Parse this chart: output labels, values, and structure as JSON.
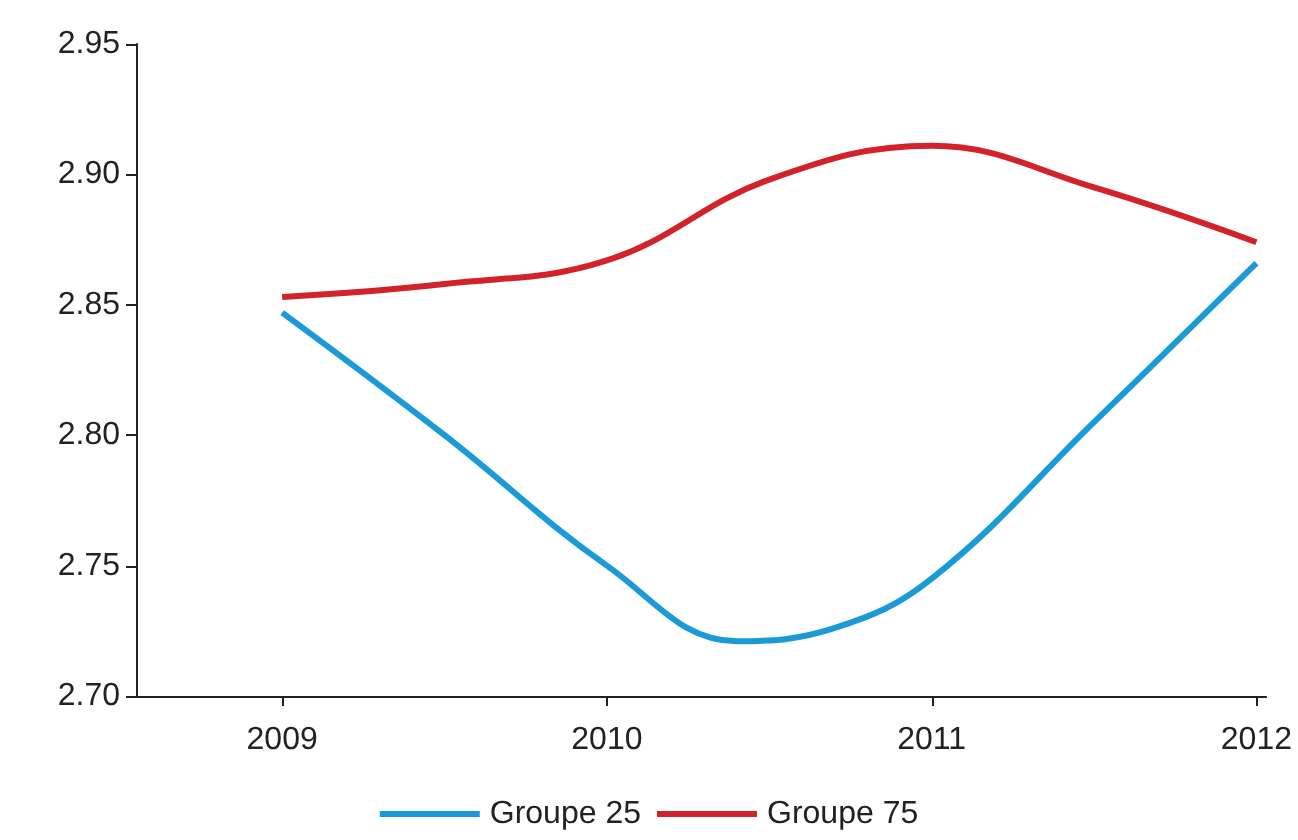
{
  "chart_data": {
    "type": "line",
    "xlim": [
      2008.55,
      2012.03
    ],
    "xticks": [
      2009,
      2010,
      2011,
      2012
    ],
    "ylim": [
      2.7,
      2.95
    ],
    "yticks": [
      {
        "value": 2.7,
        "label": "2.70"
      },
      2.75,
      {
        "value": 2.8,
        "label": "2.80"
      },
      2.85,
      {
        "value": 2.9,
        "label": "2.90"
      },
      2.95
    ],
    "grid": false,
    "legend": "bottom",
    "marker": "none",
    "line_style": "solid",
    "series": [
      {
        "name": "Groupe 25",
        "color": "#1a9ad6",
        "x": [
          2009,
          2009.5,
          2010,
          2010.4,
          2010.7,
          2011,
          2011.5,
          2012
        ],
        "values": [
          2.847,
          2.8,
          2.75,
          2.721,
          2.726,
          2.745,
          2.805,
          2.866
        ]
      },
      {
        "name": "Groupe 75",
        "color": "#d2232a",
        "x": [
          2009,
          2009.5,
          2010,
          2010.5,
          2011,
          2011.5,
          2012
        ],
        "values": [
          2.853,
          2.858,
          2.867,
          2.898,
          2.911,
          2.895,
          2.874
        ]
      }
    ]
  }
}
